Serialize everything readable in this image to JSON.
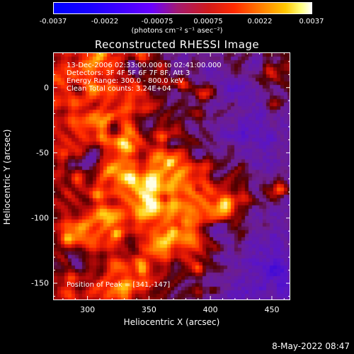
{
  "colorbar": {
    "ticks": [
      "-0.0037",
      "-0.0022",
      "-0.00075",
      "0.00075",
      "0.0022",
      "0.0037"
    ],
    "unit_label": "(photons cm⁻² s⁻¹ asec⁻²)",
    "min": -0.0037,
    "max": 0.0037
  },
  "chart_data": {
    "type": "heatmap",
    "title": "Reconstructed RHESSI Image",
    "xlabel": "Heliocentric X (arcsec)",
    "ylabel": "Heliocentric Y (arcsec)",
    "xlim": [
      272,
      465
    ],
    "ylim": [
      -163,
      27
    ],
    "x_ticks": [
      300,
      350,
      400,
      450
    ],
    "y_ticks": [
      0,
      -50,
      -100,
      -150
    ],
    "info_lines": [
      "13-Dec-2006 02:33:00.000 to 02:41:00.000",
      "Detectors: 3F 4F 5F 6F 7F 8F, Att 3",
      "Energy Range: 300.0 - 800.0 keV",
      "Clean       Total counts: 3.24E+04"
    ],
    "peak_label": "Position of Peak = [341,-147]",
    "peak": [
      341,
      -147
    ]
  },
  "footer": {
    "timestamp": "8-May-2022 08:47"
  }
}
